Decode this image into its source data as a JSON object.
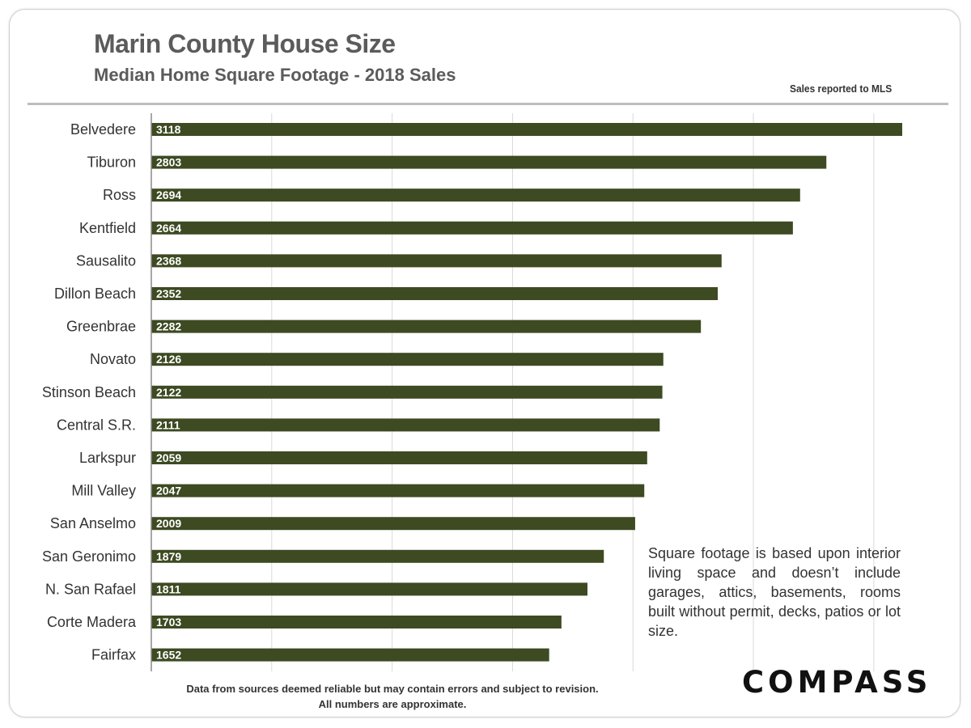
{
  "chart_data": {
    "type": "bar",
    "orientation": "horizontal",
    "title": "Marin County House Size",
    "subtitle": "Median Home Square Footage - 2018 Sales",
    "categories": [
      "Belvedere",
      "Tiburon",
      "Ross",
      "Kentfield",
      "Sausalito",
      "Dillon Beach",
      "Greenbrae",
      "Novato",
      "Stinson Beach",
      "Central S.R.",
      "Larkspur",
      "Mill Valley",
      "San Anselmo",
      "San Geronimo",
      "N. San Rafael",
      "Corte Madera",
      "Fairfax"
    ],
    "values": [
      3118,
      2803,
      2694,
      2664,
      2368,
      2352,
      2282,
      2126,
      2122,
      2111,
      2059,
      2047,
      2009,
      1879,
      1811,
      1703,
      1652
    ],
    "xlim": [
      0,
      3000
    ],
    "grid": true,
    "bar_color": "#3d4a22",
    "gridline_color": "#d9d9d9"
  },
  "source_note": "Sales reported  to MLS",
  "note": "Square footage is based upon interior living space and doesn’t include garages, attics, basements, rooms built without permit, decks, patios or lot size.",
  "footer": {
    "line1": "Data from sources deemed reliable but  may contain errors and subject to revision.",
    "line2": "All numbers are approximate."
  },
  "logo": "COMPASS"
}
